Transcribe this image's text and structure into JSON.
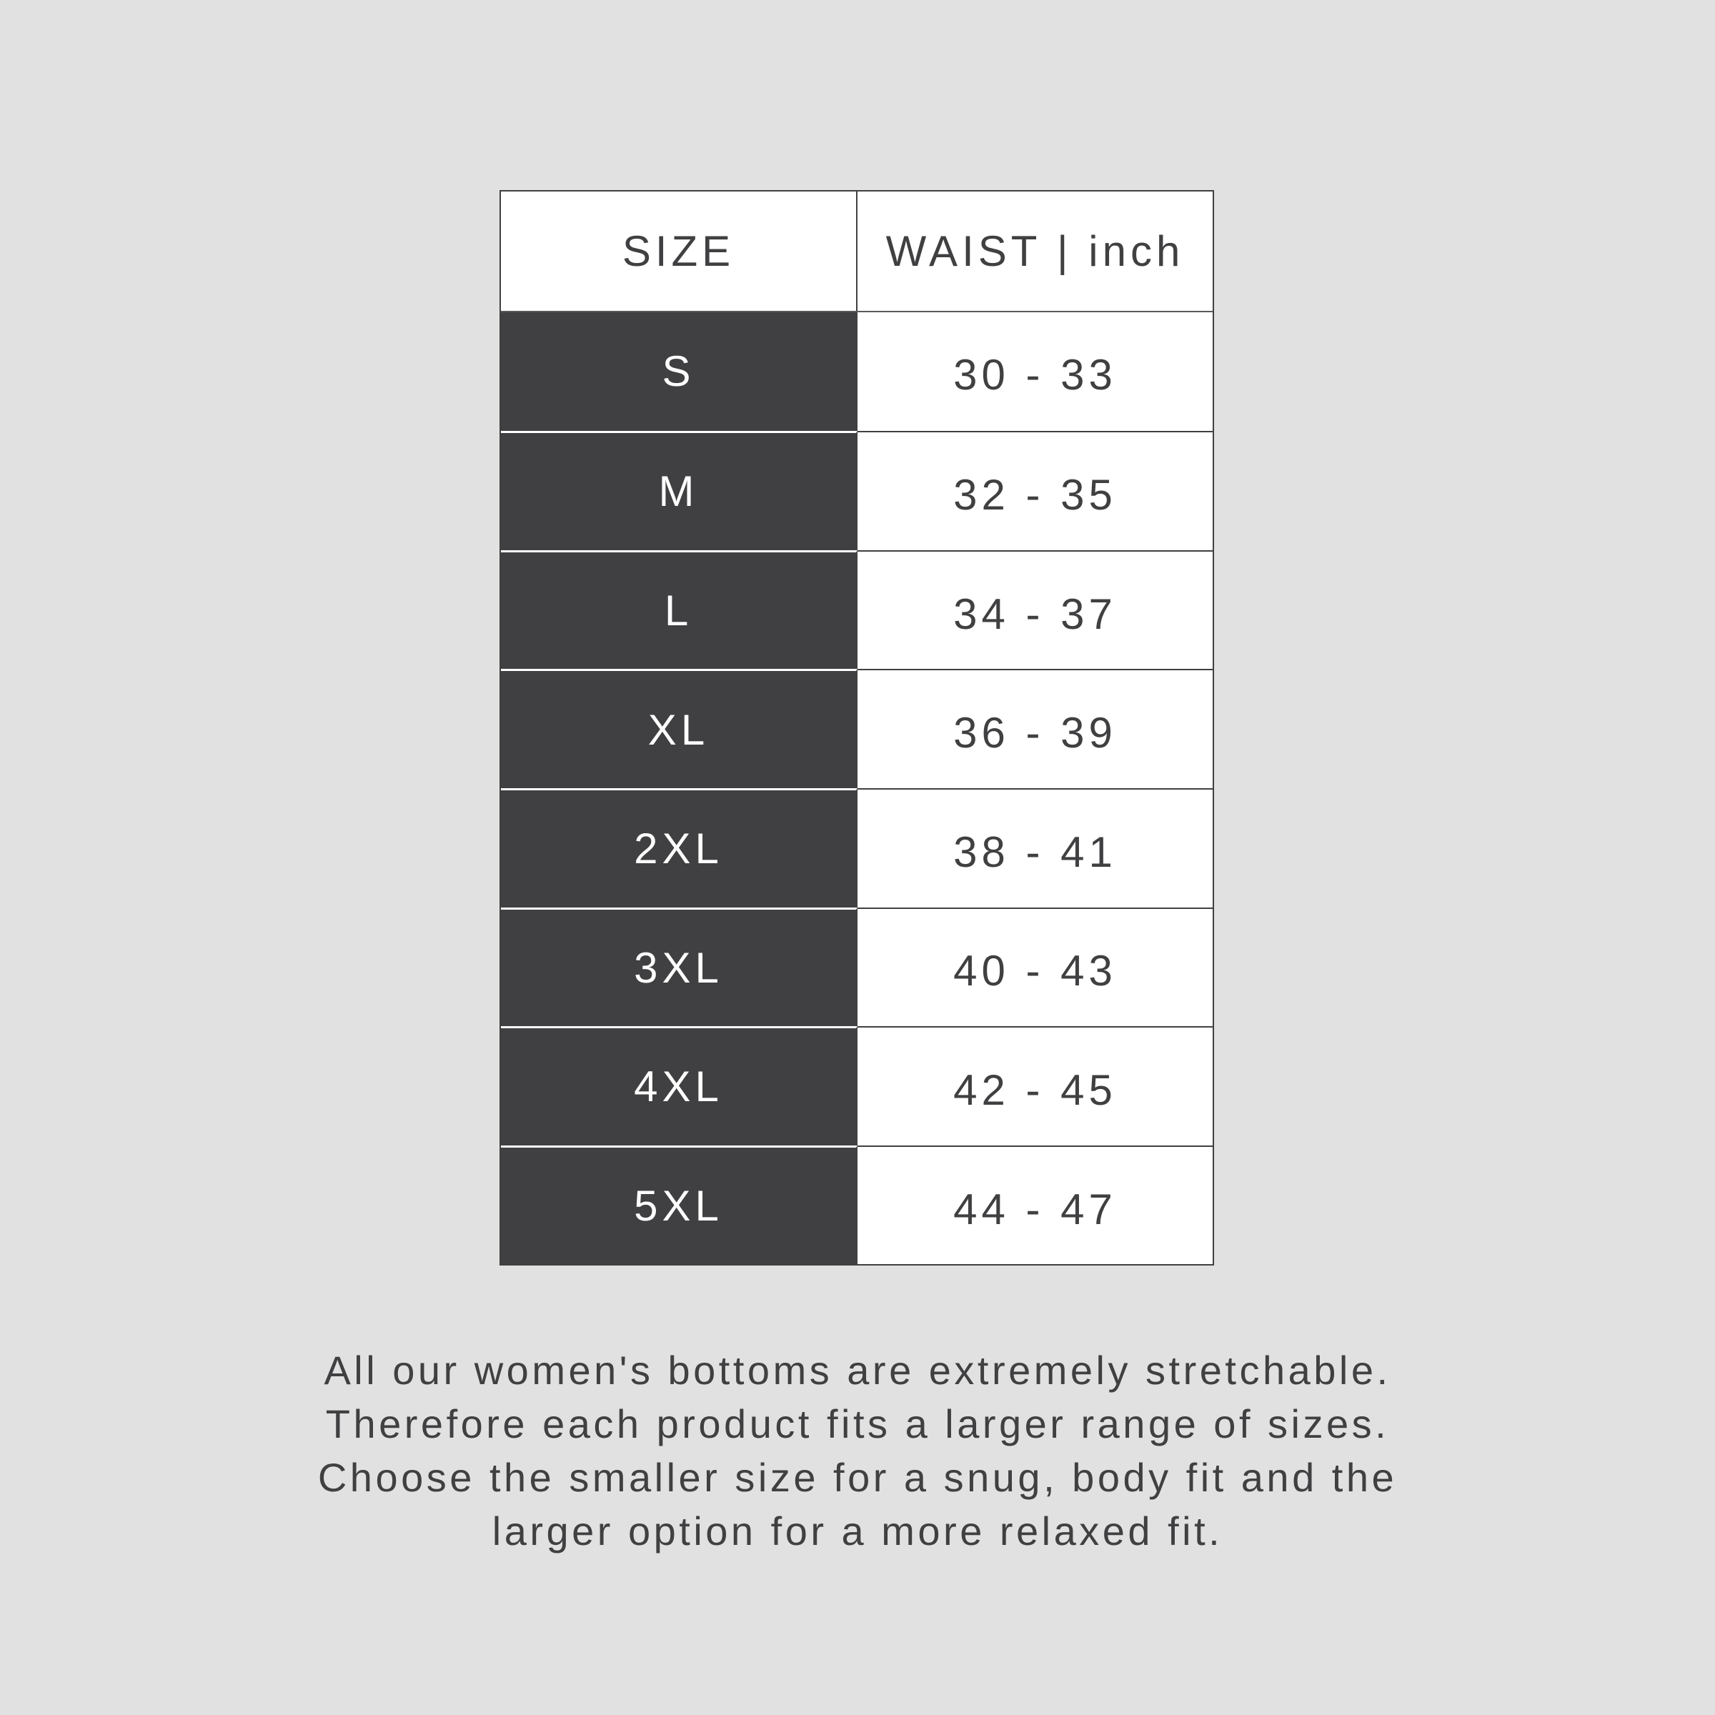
{
  "table": {
    "headers": [
      "SIZE",
      "WAIST | inch"
    ],
    "rows": [
      {
        "size": "S",
        "waist": "30 - 33"
      },
      {
        "size": "M",
        "waist": "32 - 35"
      },
      {
        "size": "L",
        "waist": "34 - 37"
      },
      {
        "size": "XL",
        "waist": "36 - 39"
      },
      {
        "size": "2XL",
        "waist": "38 - 41"
      },
      {
        "size": "3XL",
        "waist": "40 - 43"
      },
      {
        "size": "4XL",
        "waist": "42 - 45"
      },
      {
        "size": "5XL",
        "waist": "44 - 47"
      }
    ]
  },
  "note": {
    "lines": [
      "All our women's bottoms are extremely stretchable.",
      "Therefore each product fits a larger range of sizes.",
      "Choose the smaller size for a snug, body fit and the",
      "larger option for a more relaxed fit."
    ]
  },
  "colors": {
    "background": "#e1e1e1",
    "dark": "#404042",
    "light": "#ffffff"
  }
}
